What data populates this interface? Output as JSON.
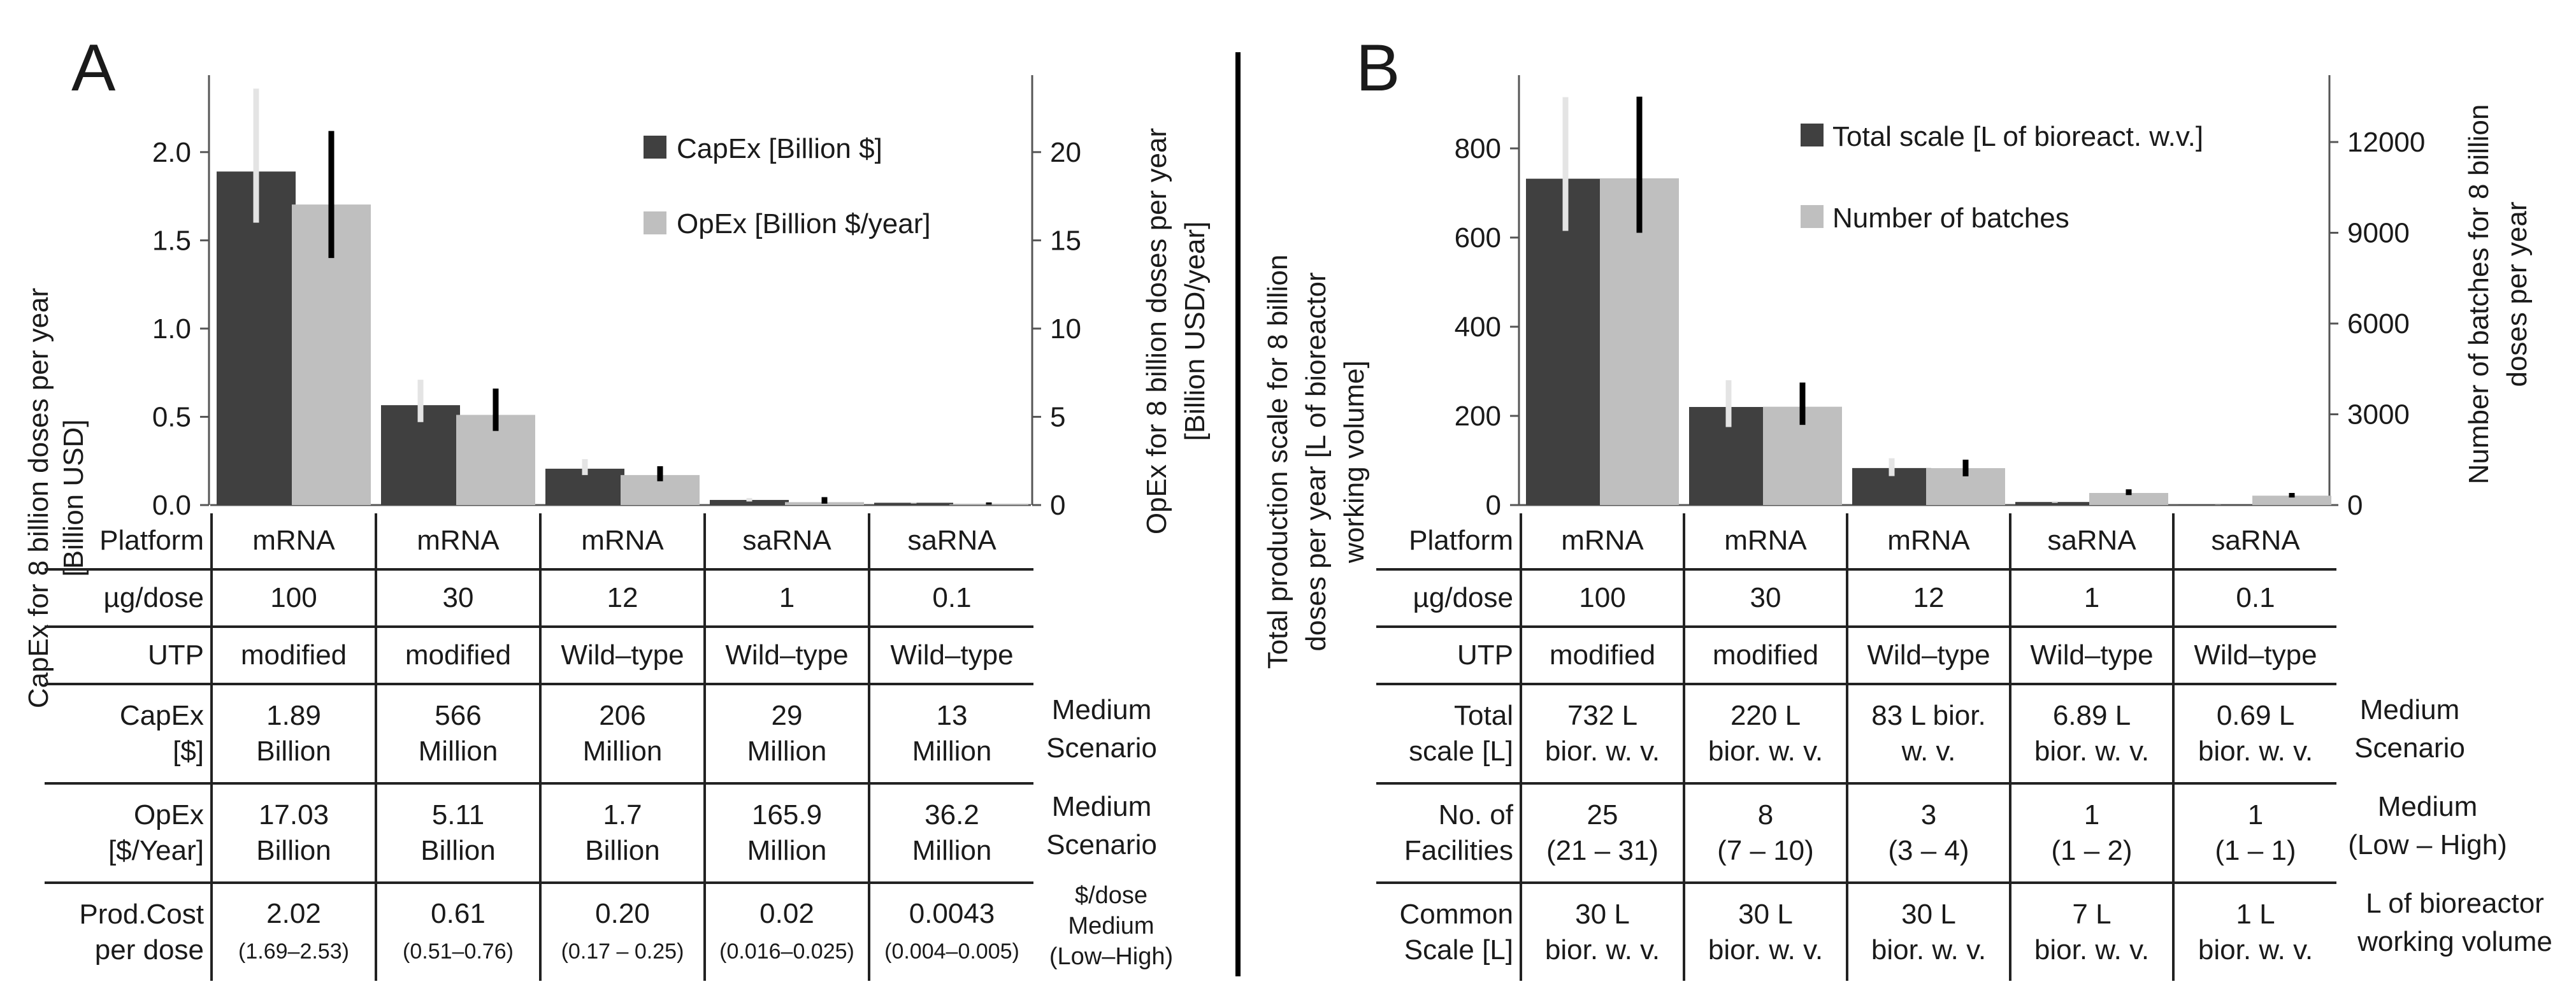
{
  "colors": {
    "dark_bar": "#404040",
    "light_bar": "#bfbfbf",
    "err_dark": "#000000",
    "err_light": "#e4e4e4"
  },
  "chart_data": [
    {
      "type": "bar",
      "panel": "A",
      "categories": [
        "mRNA 100 µg",
        "mRNA 30 µg",
        "mRNA 12 µg",
        "saRNA 1 µg",
        "saRNA 0.1 µg"
      ],
      "series": [
        {
          "name": "CapEx [Billion $]",
          "axis": "left",
          "values": [
            1.89,
            0.566,
            0.206,
            0.029,
            0.013
          ],
          "err_low": [
            1.6,
            0.47,
            0.17,
            0.02,
            0.009
          ],
          "err_high": [
            2.36,
            0.71,
            0.26,
            0.04,
            0.017
          ]
        },
        {
          "name": "OpEx [Billion $/year]",
          "axis": "right",
          "values": [
            17.03,
            5.11,
            1.7,
            0.1659,
            0.0362
          ],
          "err_low": [
            14.0,
            4.2,
            1.35,
            0.08,
            0.02
          ],
          "err_high": [
            21.2,
            6.6,
            2.2,
            0.45,
            0.15
          ]
        }
      ],
      "ylabel_left": "CapEx for 8 billion doses per year [Billion USD]",
      "ylabel_right": "OpEx for 8 billion doses per year [Billion USD/year]",
      "ylim_left": [
        0,
        2.4
      ],
      "ylim_right": [
        0,
        24
      ],
      "yticks_left": [
        "0.0",
        "0.5",
        "1.0",
        "1.5",
        "2.0"
      ],
      "ytick_values_left": [
        0,
        0.5,
        1.0,
        1.5,
        2.0
      ],
      "yticks_right": [
        "0",
        "5",
        "10",
        "15",
        "20"
      ],
      "ytick_values_right": [
        0,
        5,
        10,
        15,
        20
      ]
    },
    {
      "type": "bar",
      "panel": "B",
      "categories": [
        "mRNA 100 µg",
        "mRNA 30 µg",
        "mRNA 12 µg",
        "saRNA 1 µg",
        "saRNA 0.1 µg"
      ],
      "series": [
        {
          "name": "Total scale [L of bioreact. w.v.]",
          "axis": "left",
          "values": [
            732,
            220,
            83,
            6.89,
            0.69
          ],
          "err_low": [
            615,
            175,
            65,
            5,
            0.5
          ],
          "err_high": [
            915,
            280,
            105,
            9,
            1
          ]
        },
        {
          "name": "Number of batches",
          "axis": "right",
          "values": [
            10800,
            3250,
            1220,
            400,
            310
          ],
          "err_low": [
            9000,
            2650,
            950,
            330,
            250
          ],
          "err_high": [
            13500,
            4050,
            1500,
            520,
            400
          ]
        }
      ],
      "ylabel_left": "Total production scale for 8 billion doses per year [L of bioreactor working volume]",
      "ylabel_right": "Number of batches for 8 billion doses per year",
      "ylim_left": [
        0,
        950
      ],
      "ylim_right": [
        0,
        14000
      ],
      "yticks_left": [
        "0",
        "200",
        "400",
        "600",
        "800"
      ],
      "ytick_values_left": [
        0,
        200,
        400,
        600,
        800
      ],
      "yticks_right": [
        "0",
        "3000",
        "6000",
        "9000",
        "12000"
      ],
      "ytick_values_right": [
        0,
        3000,
        6000,
        9000,
        12000
      ]
    }
  ],
  "panel_a": {
    "letter": "A",
    "legend": {
      "capex": "CapEx [Billion $]",
      "opex": "OpEx [Billion $/year]"
    },
    "ylabel_left": {
      "line1": "CapEx for 8 billion doses per year",
      "line2": "[Billion USD]"
    },
    "ylabel_right": {
      "line1": "OpEx for 8 billion doses per year",
      "line2": "[Billion USD/year]"
    },
    "table": {
      "platform": {
        "label": "Platform",
        "values": [
          "mRNA",
          "mRNA",
          "mRNA",
          "saRNA",
          "saRNA"
        ]
      },
      "dose": {
        "label": "µg/dose",
        "values": [
          "100",
          "30",
          "12",
          "1",
          "0.1"
        ]
      },
      "utp": {
        "label": "UTP",
        "values": [
          "modified",
          "modified",
          "Wild–type",
          "Wild–type",
          "Wild–type"
        ]
      },
      "capex": {
        "label1": "CapEx",
        "label2": "[$]",
        "l1": [
          "1.89",
          "566",
          "206",
          "29",
          "13"
        ],
        "l2": [
          "Billion",
          "Million",
          "Million",
          "Million",
          "Million"
        ],
        "side1": "Medium",
        "side2": "Scenario"
      },
      "opex": {
        "label1": "OpEx",
        "label2": "[$/Year]",
        "l1": [
          "17.03",
          "5.11",
          "1.7",
          "165.9",
          "36.2"
        ],
        "l2": [
          "Billion",
          "Billion",
          "Billion",
          "Million",
          "Million"
        ],
        "side1": "Medium",
        "side2": "Scenario"
      },
      "prod": {
        "label1": "Prod.Cost",
        "label2": "per dose",
        "l1": [
          "2.02",
          "0.61",
          "0.20",
          "0.02",
          "0.0043"
        ],
        "l2": [
          "(1.69–2.53)",
          "(0.51–0.76)",
          "(0.17 – 0.25)",
          "(0.016–0.025)",
          "(0.004–0.005)"
        ],
        "side1": "$/dose",
        "side2": "Medium",
        "side3": "(Low–High)"
      }
    }
  },
  "panel_b": {
    "letter": "B",
    "legend": {
      "scale": "Total scale [L of bioreact. w.v.]",
      "batches": "Number of batches"
    },
    "ylabel_left": {
      "line1": "Total production scale for 8 billion",
      "line2": "doses per year [L of bioreactor",
      "line3": "working volume]"
    },
    "ylabel_right": {
      "line1": "Number of batches for 8 billion",
      "line2": "doses per year"
    },
    "table": {
      "platform": {
        "label": "Platform",
        "values": [
          "mRNA",
          "mRNA",
          "mRNA",
          "saRNA",
          "saRNA"
        ]
      },
      "dose": {
        "label": "µg/dose",
        "values": [
          "100",
          "30",
          "12",
          "1",
          "0.1"
        ]
      },
      "utp": {
        "label": "UTP",
        "values": [
          "modified",
          "modified",
          "Wild–type",
          "Wild–type",
          "Wild–type"
        ]
      },
      "scale": {
        "label1": "Total",
        "label2": "scale [L]",
        "l1": [
          "732 L",
          "220 L",
          "83 L bior.",
          "6.89 L",
          "0.69 L"
        ],
        "l2": [
          "bior. w. v.",
          "bior. w. v.",
          "w. v.",
          "bior. w. v.",
          "bior. w. v."
        ],
        "side1": "Medium",
        "side2": "Scenario"
      },
      "facilities": {
        "label1": "No. of",
        "label2": "Facilities",
        "l1": [
          "25",
          "8",
          "3",
          "1",
          "1"
        ],
        "l2": [
          "(21 – 31)",
          "(7 – 10)",
          "(3 – 4)",
          "(1 – 2)",
          "(1 – 1)"
        ],
        "side1": "Medium",
        "side2": "(Low – High)"
      },
      "common": {
        "label1": "Common",
        "label2": "Scale [L]",
        "l1": [
          "30 L",
          "30 L",
          "30 L",
          "7 L",
          "1 L"
        ],
        "l2": [
          "bior. w. v.",
          "bior. w. v.",
          "bior. w. v.",
          "bior. w. v.",
          "bior. w. v."
        ],
        "side1": "L of bioreactor",
        "side2": "working volume"
      }
    }
  }
}
